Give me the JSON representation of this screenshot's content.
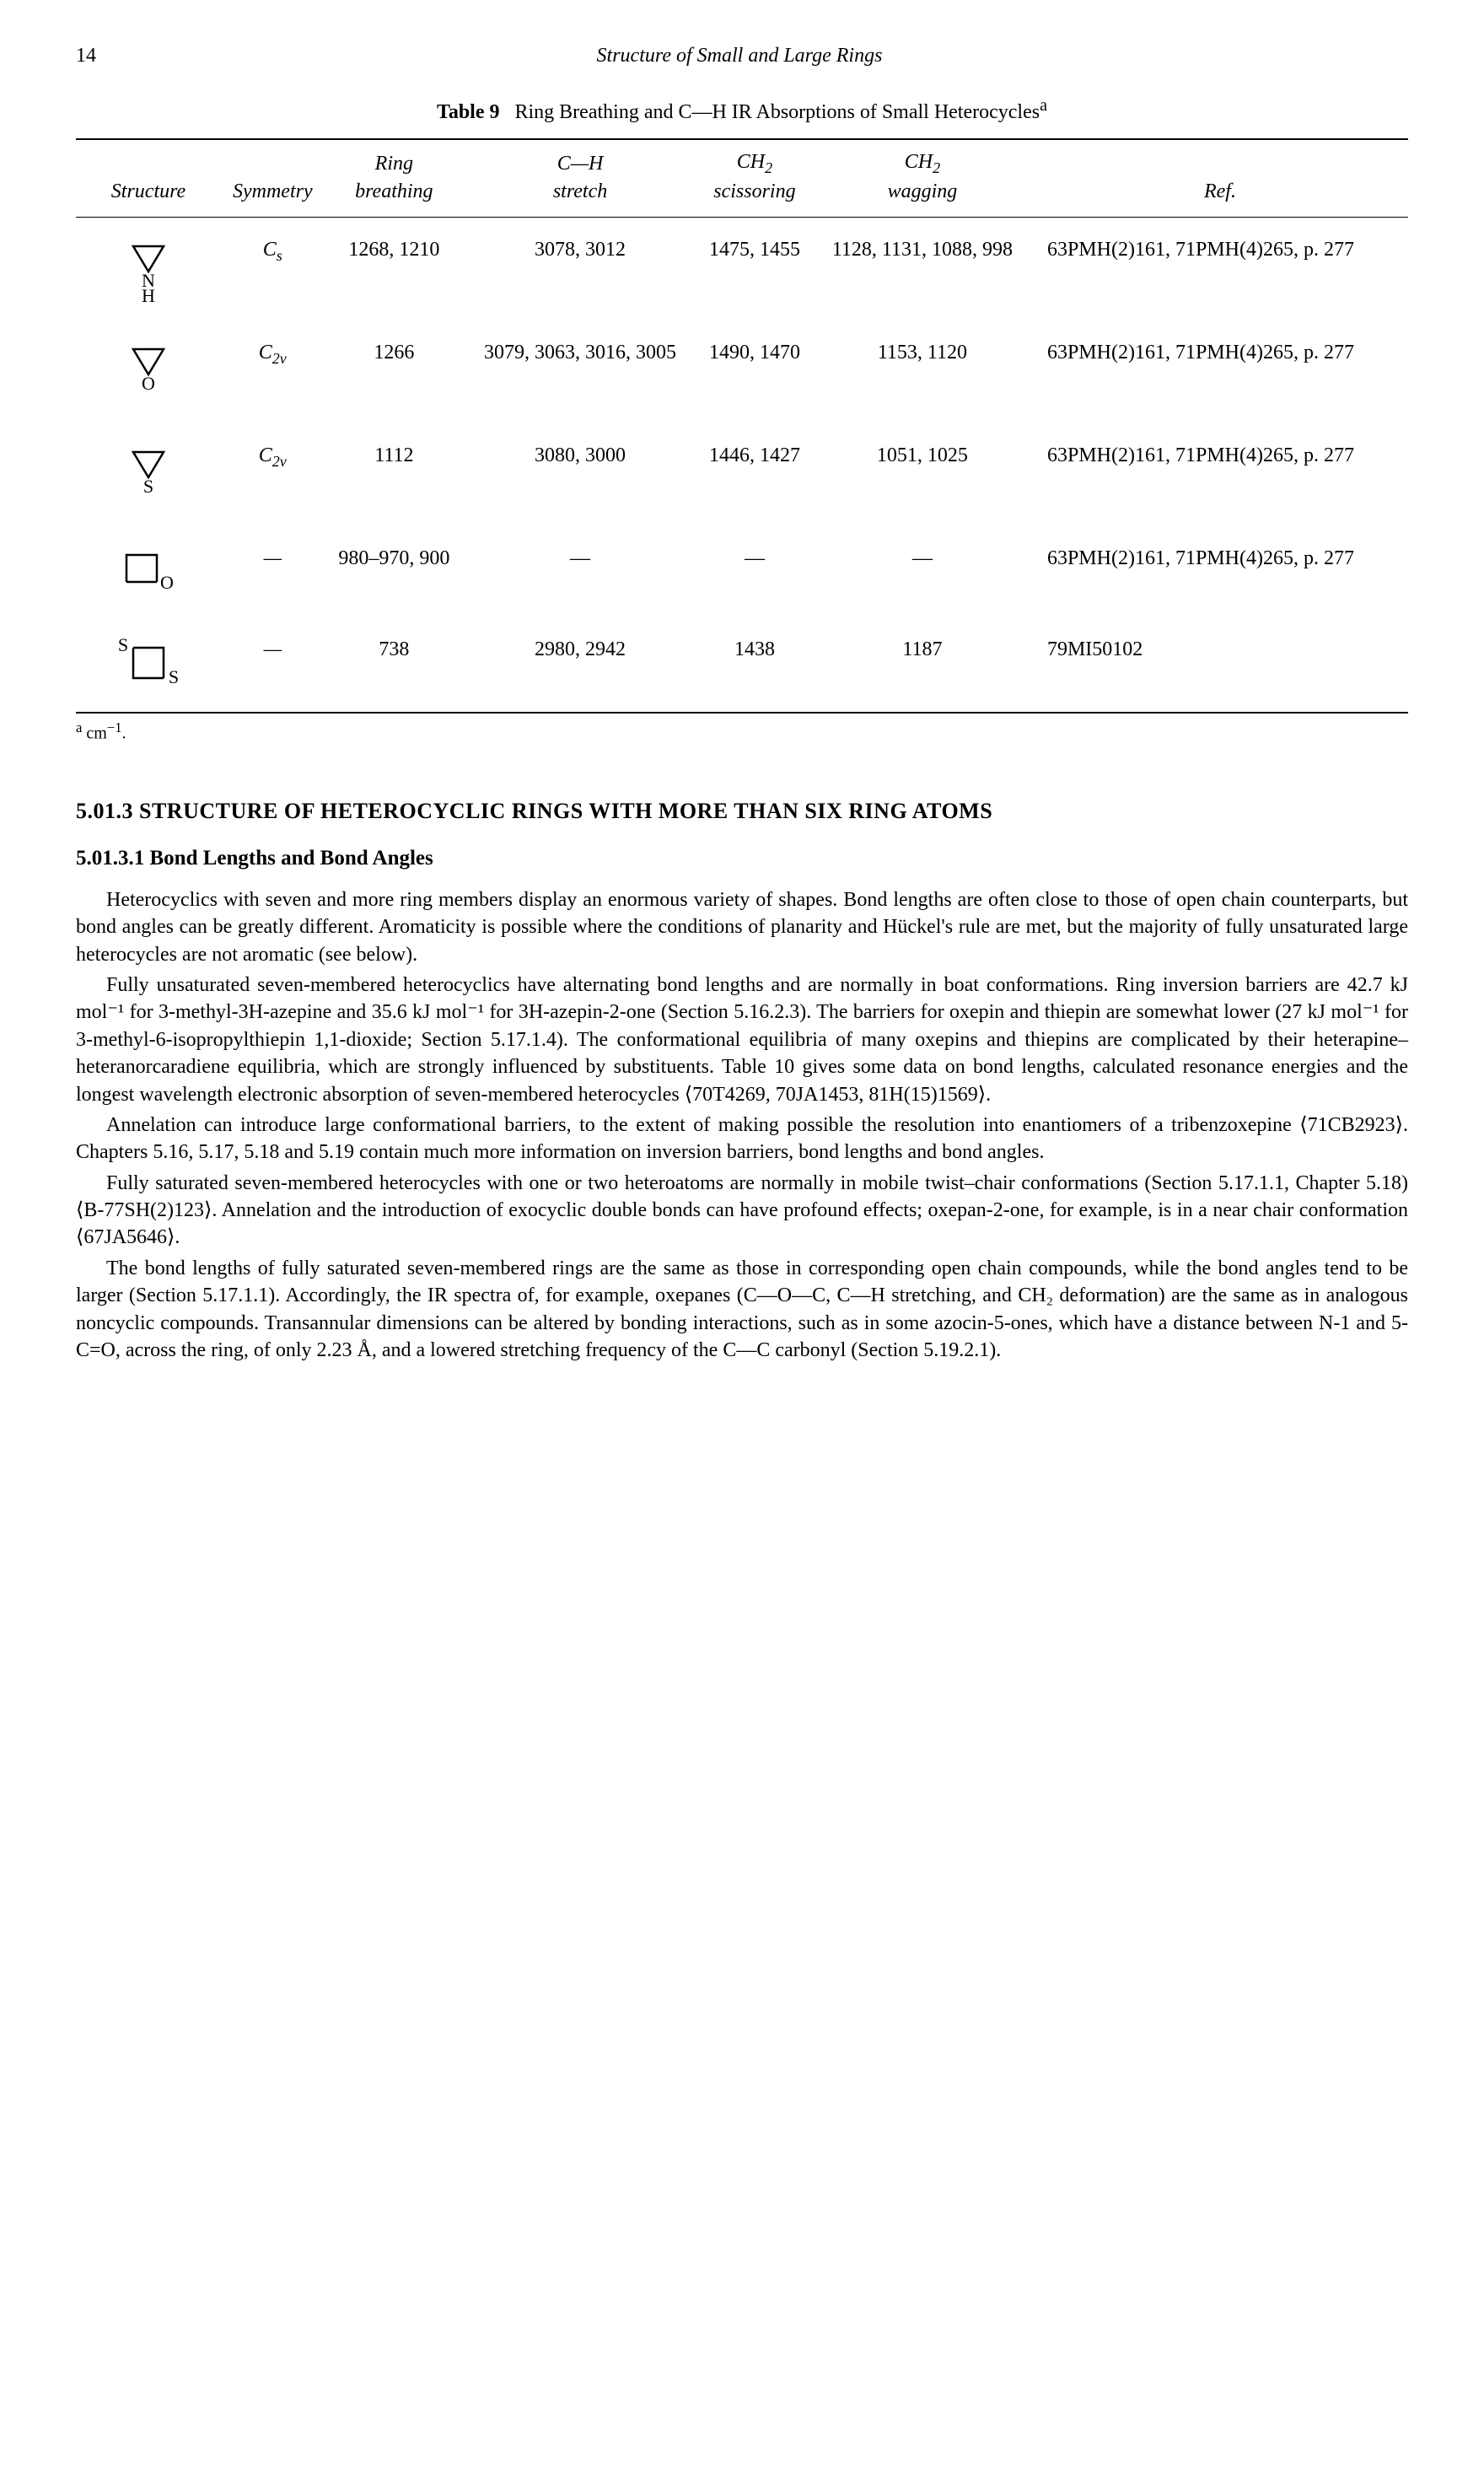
{
  "page_number": "14",
  "running_title": "Structure of Small and Large Rings",
  "table": {
    "caption_label": "Table 9",
    "caption_text": "Ring Breathing and C—H IR Absorptions of Small Heterocycles",
    "caption_sup": "a",
    "headers": {
      "structure": "Structure",
      "symmetry": "Symmetry",
      "ring_breathing_line1": "Ring",
      "ring_breathing_line2": "breathing",
      "ch_stretch_line1": "C—H",
      "ch_stretch_line2": "stretch",
      "ch2_scissoring_line1": "CH",
      "ch2_scissoring_sub": "2",
      "ch2_scissoring_line2": "scissoring",
      "ch2_wagging_line1": "CH",
      "ch2_wagging_sub": "2",
      "ch2_wagging_line2": "wagging",
      "ref": "Ref."
    },
    "rows": [
      {
        "struct_type": "tri",
        "het_label": "N",
        "extra_label": "H",
        "symmetry": "C",
        "symmetry_sub": "s",
        "ring_breathing": "1268, 1210",
        "ch_stretch": "3078, 3012",
        "ch2_scissoring": "1475, 1455",
        "ch2_wagging": "1128, 1131, 1088, 998",
        "ref": "63PMH(2)161, 71PMH(4)265, p. 277"
      },
      {
        "struct_type": "tri",
        "het_label": "O",
        "extra_label": "",
        "symmetry": "C",
        "symmetry_sub": "2v",
        "ring_breathing": "1266",
        "ch_stretch": "3079, 3063, 3016, 3005",
        "ch2_scissoring": "1490, 1470",
        "ch2_wagging": "1153, 1120",
        "ref": "63PMH(2)161, 71PMH(4)265, p. 277"
      },
      {
        "struct_type": "tri",
        "het_label": "S",
        "extra_label": "",
        "symmetry": "C",
        "symmetry_sub": "2v",
        "ring_breathing": "1112",
        "ch_stretch": "3080, 3000",
        "ch2_scissoring": "1446, 1427",
        "ch2_wagging": "1051, 1025",
        "ref": "63PMH(2)161, 71PMH(4)265, p. 277"
      },
      {
        "struct_type": "sq1",
        "het_label": "O",
        "extra_label": "",
        "symmetry": "—",
        "symmetry_sub": "",
        "ring_breathing": "980–970, 900",
        "ch_stretch": "—",
        "ch2_scissoring": "—",
        "ch2_wagging": "—",
        "ref": "63PMH(2)161, 71PMH(4)265, p. 277"
      },
      {
        "struct_type": "sq2",
        "het_label": "S",
        "extra_label": "S",
        "symmetry": "—",
        "symmetry_sub": "",
        "ring_breathing": "738",
        "ch_stretch": "2980, 2942",
        "ch2_scissoring": "1438",
        "ch2_wagging": "1187",
        "ref": "79MI50102"
      }
    ],
    "footnote_sup": "a",
    "footnote_text": "cm",
    "footnote_exp": "−1",
    "footnote_period": "."
  },
  "section": {
    "heading": "5.01.3 STRUCTURE OF HETEROCYCLIC RINGS WITH MORE THAN SIX RING ATOMS",
    "subheading": "5.01.3.1 Bond Lengths and Bond Angles",
    "p1": "Heterocyclics with seven and more ring members display an enormous variety of shapes. Bond lengths are often close to those of open chain counterparts, but bond angles can be greatly different. Aromaticity is possible where the conditions of planarity and Hückel's rule are met, but the majority of fully unsaturated large heterocycles are not aromatic (see below).",
    "p2": "Fully unsaturated seven-membered heterocyclics have alternating bond lengths and are normally in boat conformations. Ring inversion barriers are 42.7 kJ mol⁻¹ for 3-methyl-3H-azepine and 35.6 kJ mol⁻¹ for 3H-azepin-2-one (Section 5.16.2.3). The barriers for oxepin and thiepin are somewhat lower (27 kJ mol⁻¹ for 3-methyl-6-isopropylthiepin 1,1-dioxide; Section 5.17.1.4). The conformational equilibria of many oxepins and thiepins are complicated by their heterapine–heteranorcaradiene equilibria, which are strongly influenced by substituents. Table 10 gives some data on bond lengths, calculated resonance energies and the longest wavelength electronic absorption of seven-membered heterocycles ⟨70T4269, 70JA1453, 81H(15)1569⟩.",
    "p3": "Annelation can introduce large conformational barriers, to the extent of making possible the resolution into enantiomers of a tribenzoxepine ⟨71CB2923⟩. Chapters 5.16, 5.17, 5.18 and 5.19 contain much more information on inversion barriers, bond lengths and bond angles.",
    "p4": "Fully saturated seven-membered heterocycles with one or two heteroatoms are normally in mobile twist–chair conformations (Section 5.17.1.1, Chapter 5.18) ⟨B-77SH(2)123⟩. Annelation and the introduction of exocyclic double bonds can have profound effects; oxepan-2-one, for example, is in a near chair conformation ⟨67JA5646⟩.",
    "p5": "The bond lengths of fully saturated seven-membered rings are the same as those in corresponding open chain compounds, while the bond angles tend to be larger (Section 5.17.1.1). Accordingly, the IR spectra of, for example, oxepanes (C—O—C, C—H stretching, and CH₂ deformation) are the same as in analogous noncyclic compounds. Transannular dimensions can be altered by bonding interactions, such as in some azocin-5-ones, which have a distance between N-1 and 5-C=O, across the ring, of only 2.23 Å, and a lowered stretching frequency of the C—C carbonyl (Section 5.19.2.1)."
  }
}
